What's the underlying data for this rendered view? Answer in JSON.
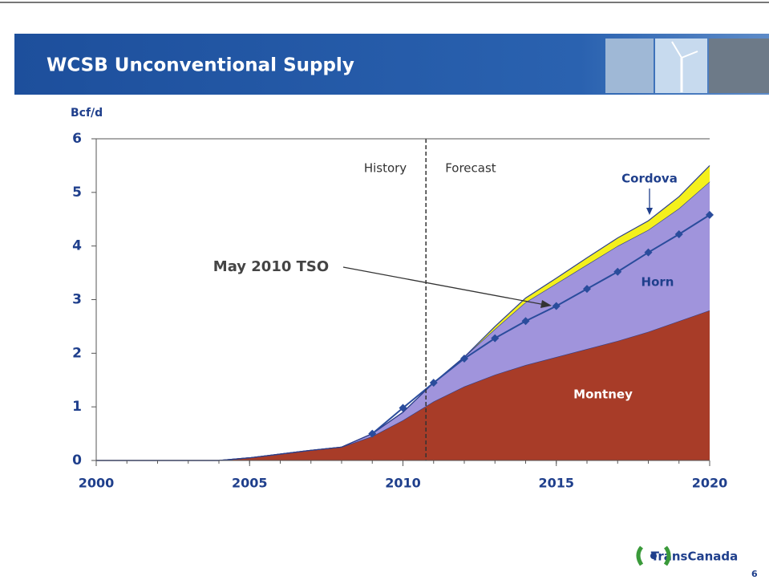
{
  "header": {
    "title": "WCSB Unconventional Supply"
  },
  "chart_data": {
    "type": "area",
    "stacked": true,
    "y_label": "Bcf/d",
    "x": [
      2000,
      2001,
      2002,
      2003,
      2004,
      2005,
      2006,
      2007,
      2008,
      2009,
      2010,
      2011,
      2012,
      2013,
      2014,
      2015,
      2016,
      2017,
      2018,
      2019,
      2020
    ],
    "xlim": [
      2000,
      2020
    ],
    "xticks": [
      2000,
      2005,
      2010,
      2015,
      2020
    ],
    "ylim": [
      0,
      6
    ],
    "yticks": [
      0,
      1,
      2,
      3,
      4,
      5,
      6
    ],
    "grid": false,
    "series": [
      {
        "name": "Montney",
        "type": "area",
        "color": "#a83c28",
        "values": [
          0,
          0,
          0,
          0,
          0,
          0.05,
          0.12,
          0.19,
          0.25,
          0.45,
          0.75,
          1.1,
          1.38,
          1.6,
          1.78,
          1.93,
          2.08,
          2.23,
          2.4,
          2.6,
          2.8
        ]
      },
      {
        "name": "Horn",
        "type": "area",
        "color": "#a094dc",
        "values": [
          0,
          0,
          0,
          0,
          0,
          0,
          0,
          0,
          0,
          0.05,
          0.15,
          0.35,
          0.55,
          0.85,
          1.17,
          1.37,
          1.57,
          1.77,
          1.9,
          2.1,
          2.4
        ]
      },
      {
        "name": "Cordova",
        "type": "area",
        "color": "#f4f01c",
        "values": [
          0,
          0,
          0,
          0,
          0,
          0,
          0,
          0,
          0,
          0,
          0,
          0,
          0,
          0.05,
          0.08,
          0.1,
          0.13,
          0.15,
          0.17,
          0.22,
          0.3
        ]
      },
      {
        "name": "May 2010 TSO",
        "type": "line",
        "color": "#2a4c9c",
        "values": [
          null,
          null,
          null,
          null,
          null,
          null,
          null,
          null,
          null,
          0.5,
          0.98,
          1.45,
          1.9,
          2.28,
          2.6,
          2.88,
          3.2,
          3.52,
          3.88,
          4.22,
          4.58
        ]
      }
    ],
    "forecast_start": 2010.75,
    "annotations": {
      "history": "History",
      "forecast": "Forecast"
    }
  },
  "footer": {
    "logo": "TransCanada",
    "page": "6"
  }
}
